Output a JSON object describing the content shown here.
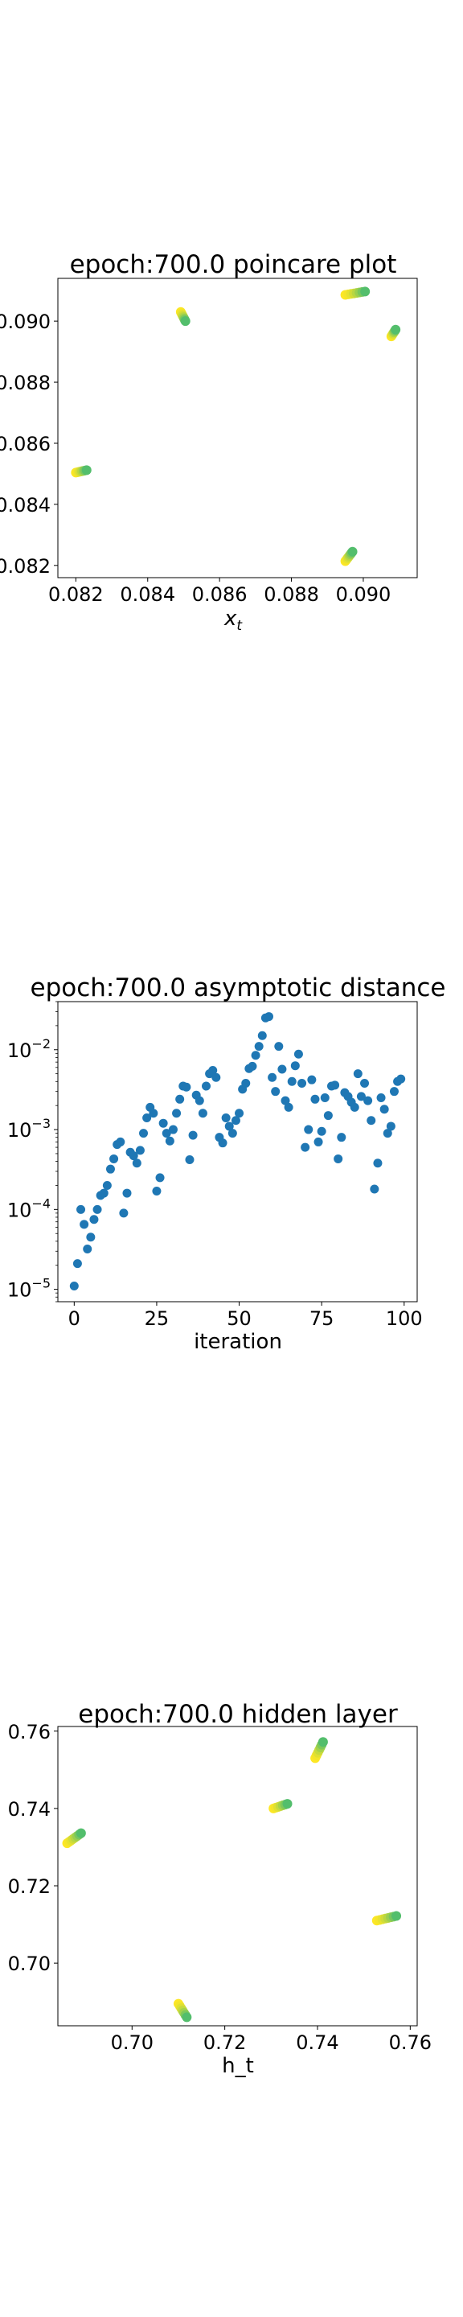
{
  "palette": {
    "viridis_end": "#fde725",
    "viridis_mid": "#35b779",
    "blue": "#1f77b4"
  },
  "chart_data": [
    {
      "type": "scatter",
      "title": "epoch:700.0 poincare plot",
      "xlabel": "x_t",
      "xlabel_base": "x",
      "xlabel_sub": "t",
      "ylabel": "",
      "xlim": [
        0.0815,
        0.0915
      ],
      "ylim": [
        0.0816,
        0.0914
      ],
      "xticks": [
        0.082,
        0.084,
        0.086,
        0.088,
        0.09
      ],
      "xtick_labels": [
        "0.082",
        "0.084",
        "0.086",
        "0.088",
        "0.090"
      ],
      "yticks": [
        0.082,
        0.084,
        0.086,
        0.088,
        0.09
      ],
      "ytick_labels": [
        "0.082",
        "0.084",
        "0.086",
        "0.088",
        "0.090"
      ],
      "colormap": "viridis",
      "clusters": [
        {
          "start": [
            0.082,
            0.08504
          ],
          "end": [
            0.0823,
            0.08512
          ],
          "n": 8
        },
        {
          "start": [
            0.08492,
            0.0903
          ],
          "end": [
            0.08505,
            0.09
          ],
          "n": 8
        },
        {
          "start": [
            0.0895,
            0.09086
          ],
          "end": [
            0.09005,
            0.09097
          ],
          "n": 8
        },
        {
          "start": [
            0.09078,
            0.0895
          ],
          "end": [
            0.0909,
            0.08972
          ],
          "n": 6
        },
        {
          "start": [
            0.0895,
            0.08214
          ],
          "end": [
            0.0897,
            0.08245
          ],
          "n": 8
        }
      ]
    },
    {
      "type": "scatter",
      "title": "epoch:700.0 asymptotic distance",
      "xlabel": "iteration",
      "ylabel": "",
      "xlim": [
        -4.95,
        103.95
      ],
      "yscale": "log",
      "ylim": [
        7e-06,
        0.04
      ],
      "xticks": [
        0,
        25,
        50,
        75,
        100
      ],
      "xtick_labels": [
        "0",
        "25",
        "50",
        "75",
        "100"
      ],
      "yticks": [
        1e-05,
        0.0001,
        0.001,
        0.01
      ],
      "ytick_base": [
        "10",
        "10",
        "10",
        "10"
      ],
      "ytick_exp": [
        "−5",
        "−4",
        "−3",
        "−2"
      ],
      "x": [
        0,
        1,
        2,
        3,
        4,
        5,
        6,
        7,
        8,
        9,
        10,
        11,
        12,
        13,
        14,
        15,
        16,
        17,
        18,
        19,
        20,
        21,
        22,
        23,
        24,
        25,
        26,
        27,
        28,
        29,
        30,
        31,
        32,
        33,
        34,
        35,
        36,
        37,
        38,
        39,
        40,
        41,
        42,
        43,
        44,
        45,
        46,
        47,
        48,
        49,
        50,
        51,
        52,
        53,
        54,
        55,
        56,
        57,
        58,
        59,
        60,
        61,
        62,
        63,
        64,
        65,
        66,
        67,
        68,
        69,
        70,
        71,
        72,
        73,
        74,
        75,
        76,
        77,
        78,
        79,
        80,
        81,
        82,
        83,
        84,
        85,
        86,
        87,
        88,
        89,
        90,
        91,
        92,
        93,
        94,
        95,
        96,
        97,
        98,
        99
      ],
      "y": [
        1.1e-05,
        2.1e-05,
        0.0001,
        6.5e-05,
        3.2e-05,
        4.5e-05,
        7.5e-05,
        0.0001,
        0.00015,
        0.00016,
        0.0002,
        0.00032,
        0.00043,
        0.00065,
        0.0007,
        9e-05,
        0.00016,
        0.00052,
        0.00047,
        0.00038,
        0.00055,
        0.0009,
        0.0014,
        0.0019,
        0.0016,
        0.00017,
        0.00025,
        0.0012,
        0.0009,
        0.00072,
        0.001,
        0.0016,
        0.0024,
        0.0035,
        0.0034,
        0.00042,
        0.00085,
        0.0027,
        0.0023,
        0.0016,
        0.0035,
        0.005,
        0.0055,
        0.0045,
        0.0008,
        0.00068,
        0.0014,
        0.0011,
        0.0009,
        0.0013,
        0.0016,
        0.0032,
        0.0038,
        0.0058,
        0.0062,
        0.0085,
        0.011,
        0.015,
        0.025,
        0.026,
        0.0045,
        0.003,
        0.011,
        0.0057,
        0.0023,
        0.0019,
        0.004,
        0.0063,
        0.0088,
        0.0038,
        0.0006,
        0.001,
        0.0042,
        0.0024,
        0.0007,
        0.00095,
        0.0025,
        0.0015,
        0.0035,
        0.0036,
        0.00043,
        0.0008,
        0.0029,
        0.0026,
        0.0022,
        0.0019,
        0.005,
        0.0026,
        0.0038,
        0.0023,
        0.0013,
        0.00018,
        0.00038,
        0.0025,
        0.0018,
        0.0009,
        0.0011,
        0.003,
        0.004,
        0.0043
      ]
    },
    {
      "type": "scatter",
      "title": "epoch:700.0 hidden layer",
      "xlabel": "h_t",
      "ylabel": "",
      "xlim": [
        0.684,
        0.7615
      ],
      "ylim": [
        0.6838,
        0.7612
      ],
      "xticks": [
        0.7,
        0.72,
        0.74,
        0.76
      ],
      "xtick_labels": [
        "0.70",
        "0.72",
        "0.74",
        "0.76"
      ],
      "yticks": [
        0.7,
        0.72,
        0.74,
        0.76
      ],
      "ytick_labels": [
        "0.70",
        "0.72",
        "0.74",
        "0.76"
      ],
      "colormap": "viridis",
      "clusters": [
        {
          "start": [
            0.686,
            0.731
          ],
          "end": [
            0.689,
            0.7336
          ],
          "n": 8
        },
        {
          "start": [
            0.71,
            0.6895
          ],
          "end": [
            0.7118,
            0.686
          ],
          "n": 7
        },
        {
          "start": [
            0.7305,
            0.74
          ],
          "end": [
            0.7335,
            0.7412
          ],
          "n": 7
        },
        {
          "start": [
            0.7395,
            0.753
          ],
          "end": [
            0.7412,
            0.7572
          ],
          "n": 7
        },
        {
          "start": [
            0.7528,
            0.711
          ],
          "end": [
            0.757,
            0.7122
          ],
          "n": 8
        }
      ]
    }
  ]
}
